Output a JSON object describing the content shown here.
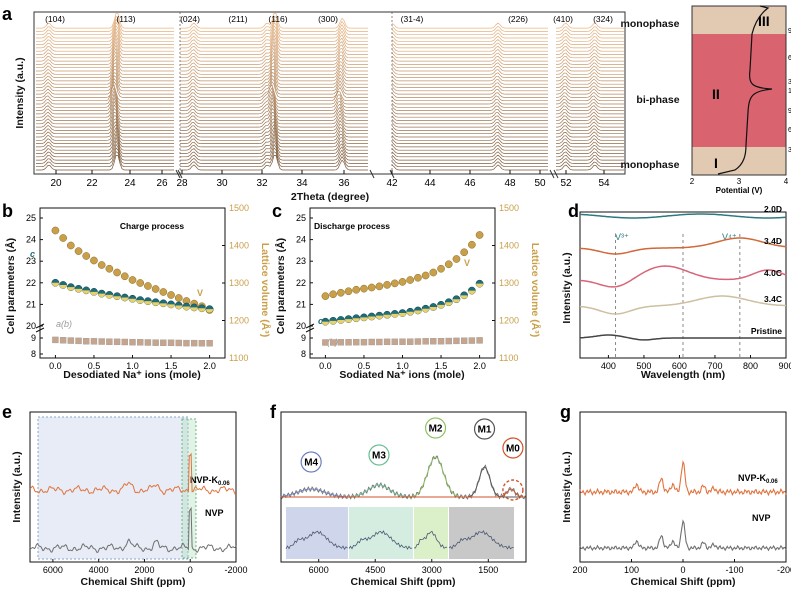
{
  "colors": {
    "xrd_curve": "#7a5a3c",
    "phase_mono": "#e2c9b2",
    "phase_bi": "#d9636e",
    "gold": "#c9a04a",
    "teal": "#1e6e7a",
    "gray": "#9a9a9a",
    "orange": "#e0733f",
    "nmr_gray": "#707070",
    "uv_teal": "#2c7a80",
    "uv_orange": "#d0683a",
    "uv_pink": "#d86478",
    "uv_tan": "#cdbfa0",
    "uv_dark": "#444444",
    "mold_blue": "#6b7fbf",
    "mold_green": "#67bf8f",
    "mold_lime": "#8ec45f",
    "mold_dark": "#555555",
    "mold_red": "#d0522a"
  },
  "panels": {
    "a": {
      "letter": "a",
      "ylabel": "Intensity (a.u.)",
      "xlabel": "2Theta (degree)",
      "peaks": [
        "(104)",
        "(113)",
        "(024)",
        "(211)",
        "(116)",
        "(300)",
        "(31-4)",
        "(226)",
        "(410)",
        "(324)"
      ],
      "xticks": [
        "20",
        "22",
        "24",
        "26",
        "28",
        "30",
        "32",
        "34",
        "36",
        "42",
        "44",
        "46",
        "48",
        "50",
        "52",
        "54"
      ],
      "phases": [
        "monophase",
        "bi-phase",
        "monophase"
      ],
      "phase_numerals": [
        "III",
        "II",
        "I"
      ],
      "side_xlabel": "Potential (V)",
      "side_xticks": [
        "2",
        "3",
        "4"
      ],
      "side_yticks": [
        "90",
        "60",
        "30",
        "120",
        "90",
        "60",
        "30"
      ]
    },
    "b": {
      "letter": "b",
      "annotation": "Charge process",
      "ylabel_left": "Cell parameters (Å)",
      "ylabel_right": "Lattice volume (Å³)",
      "xlabel": "Desodiated Na⁺ ions (mole)",
      "c_label": "c",
      "ab_label": "a(b)",
      "v_label": "V",
      "yticks_left": [
        "8",
        "9",
        "20",
        "21",
        "22",
        "23",
        "24",
        "25"
      ],
      "yticks_right": [
        "1100",
        "1200",
        "1300",
        "1400",
        "1500"
      ],
      "xticks": [
        "0.0",
        "0.5",
        "1.0",
        "1.5",
        "2.0"
      ]
    },
    "c": {
      "letter": "c",
      "annotation": "Discharge process",
      "ylabel_left": "Cell parameters (Å)",
      "ylabel_right": "Lattice volume (Å³)",
      "xlabel": "Sodiated Na⁺ ions (mole)",
      "c_label": "c",
      "ab_label": "a(b)",
      "v_label": "V",
      "yticks_left": [
        "8",
        "9",
        "20",
        "21",
        "22",
        "23",
        "24",
        "25"
      ],
      "yticks_right": [
        "1100",
        "1200",
        "1300",
        "1400",
        "1500"
      ],
      "xticks": [
        "0.0",
        "0.5",
        "1.0",
        "1.5",
        "2.0"
      ]
    },
    "d": {
      "letter": "d",
      "ylabel": "Intensity (a.u.)",
      "xlabel": "Wavelength (nm)",
      "xticks": [
        "400",
        "500",
        "600",
        "700",
        "800",
        "900"
      ],
      "v3": "V³⁺",
      "v4": "V⁴⁺"
    },
    "e": {
      "letter": "e",
      "ylabel": "Intensity (a.u.)",
      "xlabel": "Chemical Shift (ppm)",
      "xticks": [
        "6000",
        "4000",
        "2000",
        "0",
        "-2000"
      ],
      "label_top": "NVP-K",
      "label_top_sub": "0.06",
      "label_bottom": "NVP"
    },
    "f": {
      "letter": "f",
      "xlabel": "Chemical Shift (ppm)",
      "xticks": [
        "6000",
        "4500",
        "3000",
        "1500"
      ],
      "circles": [
        "M4",
        "M3",
        "M2",
        "M1",
        "M0"
      ]
    },
    "g": {
      "letter": "g",
      "ylabel": "Intensity (a.u.)",
      "xlabel": "Chemical Shift (ppm)",
      "xticks": [
        "200",
        "100",
        "0",
        "-100",
        "-200"
      ],
      "label_top": "NVP-K",
      "label_top_sub": "0.06",
      "label_bottom": "NVP"
    }
  },
  "chart_data": [
    {
      "type": "line",
      "panel": "a",
      "x_segments": [
        [
          19.5,
          27
        ],
        [
          27.5,
          37
        ],
        [
          41.5,
          51.5
        ],
        [
          51.5,
          55
        ]
      ],
      "peak_positions_2theta": [
        20.2,
        23.9,
        28.2,
        31.9,
        32.3,
        35.7,
        41.5,
        48.3,
        52.0,
        53.5
      ],
      "curve_count": 44,
      "phase_side": {
        "xlabel": "Potential (V)",
        "xlim": [
          2,
          4
        ],
        "regions": [
          "monophase",
          "bi-phase",
          "monophase"
        ]
      }
    },
    {
      "type": "scatter",
      "panel": "b",
      "xlim": [
        -0.2,
        2.2
      ],
      "x": [
        0.0,
        0.1,
        0.2,
        0.3,
        0.4,
        0.5,
        0.6,
        0.7,
        0.8,
        0.9,
        1.0,
        1.1,
        1.2,
        1.3,
        1.4,
        1.5,
        1.6,
        1.7,
        1.8,
        1.9,
        2.0
      ],
      "series": [
        {
          "name": "c",
          "axis": "left",
          "values": [
            22.0,
            21.9,
            21.8,
            21.72,
            21.65,
            21.58,
            21.5,
            21.44,
            21.38,
            21.32,
            21.26,
            21.2,
            21.15,
            21.1,
            21.05,
            21.0,
            20.95,
            20.9,
            20.86,
            20.82,
            20.78
          ]
        },
        {
          "name": "a(b)",
          "axis": "left",
          "values": [
            8.88,
            8.86,
            8.84,
            8.82,
            8.8,
            8.79,
            8.78,
            8.77,
            8.76,
            8.75,
            8.74,
            8.73,
            8.72,
            8.71,
            8.7,
            8.7,
            8.69,
            8.68,
            8.68,
            8.67,
            8.67
          ]
        },
        {
          "name": "V",
          "axis": "right",
          "values": [
            1440,
            1420,
            1400,
            1385,
            1372,
            1360,
            1348,
            1338,
            1328,
            1318,
            1308,
            1300,
            1292,
            1284,
            1276,
            1268,
            1260,
            1252,
            1245,
            1238,
            1228
          ]
        }
      ]
    },
    {
      "type": "scatter",
      "panel": "c",
      "xlim": [
        -0.2,
        2.2
      ],
      "x": [
        0.0,
        0.1,
        0.2,
        0.3,
        0.4,
        0.5,
        0.6,
        0.7,
        0.8,
        0.9,
        1.0,
        1.1,
        1.2,
        1.3,
        1.4,
        1.5,
        1.6,
        1.7,
        1.8,
        1.9,
        2.0
      ],
      "series": [
        {
          "name": "c",
          "axis": "left",
          "values": [
            20.2,
            20.24,
            20.28,
            20.32,
            20.36,
            20.4,
            20.44,
            20.48,
            20.52,
            20.56,
            20.6,
            20.66,
            20.72,
            20.8,
            20.88,
            20.98,
            21.1,
            21.24,
            21.42,
            21.64,
            21.96
          ]
        },
        {
          "name": "a(b)",
          "axis": "left",
          "values": [
            8.72,
            8.72,
            8.73,
            8.73,
            8.74,
            8.74,
            8.75,
            8.75,
            8.76,
            8.76,
            8.77,
            8.77,
            8.78,
            8.79,
            8.8,
            8.8,
            8.81,
            8.82,
            8.83,
            8.84,
            8.85
          ]
        },
        {
          "name": "V",
          "axis": "right",
          "values": [
            1265,
            1270,
            1274,
            1278,
            1282,
            1285,
            1288,
            1291,
            1295,
            1299,
            1303,
            1308,
            1314,
            1320,
            1328,
            1338,
            1350,
            1364,
            1382,
            1402,
            1428
          ]
        }
      ]
    },
    {
      "type": "line",
      "panel": "d",
      "xlim": [
        320,
        900
      ],
      "reference_lines_nm": [
        420,
        610,
        770
      ],
      "series": [
        {
          "name": "2.0D",
          "color": "#2c7a80"
        },
        {
          "name": "3.4D",
          "color": "#d0683a"
        },
        {
          "name": "4.0C",
          "color": "#d86478"
        },
        {
          "name": "3.4C",
          "color": "#cdbfa0"
        },
        {
          "name": "Pristine",
          "color": "#444444"
        }
      ]
    },
    {
      "type": "line",
      "panel": "e",
      "xlim": [
        7000,
        -2000
      ],
      "series": [
        {
          "name": "NVP-K0.06",
          "color": "#e0733f"
        },
        {
          "name": "NVP",
          "color": "#707070"
        }
      ]
    },
    {
      "type": "line",
      "panel": "f",
      "xlim": [
        7000,
        500
      ],
      "peaks": [
        {
          "name": "M4",
          "shift_ppm": 6200
        },
        {
          "name": "M3",
          "shift_ppm": 4400
        },
        {
          "name": "M2",
          "shift_ppm": 2900
        },
        {
          "name": "M1",
          "shift_ppm": 1600
        },
        {
          "name": "M0",
          "shift_ppm": 900
        }
      ]
    },
    {
      "type": "line",
      "panel": "g",
      "xlim": [
        200,
        -200
      ],
      "series": [
        {
          "name": "NVP-K0.06",
          "color": "#e0733f"
        },
        {
          "name": "NVP",
          "color": "#707070"
        }
      ]
    }
  ]
}
